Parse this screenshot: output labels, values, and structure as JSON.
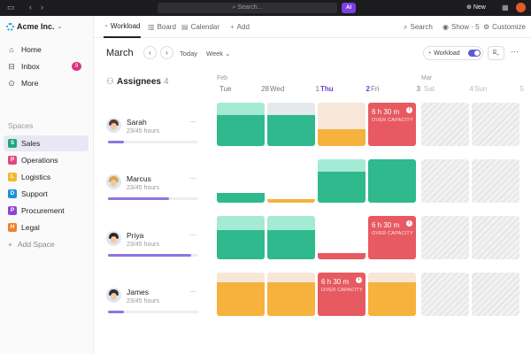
{
  "titlebar": {
    "search_placeholder": "Search...",
    "ai_label": "AI",
    "new_label": "New"
  },
  "sidebar": {
    "workspace": "Acme Inc.",
    "nav": [
      {
        "label": "Home",
        "icon": "home-icon"
      },
      {
        "label": "Inbox",
        "icon": "inbox-icon",
        "count": "9"
      },
      {
        "label": "More",
        "icon": "more-icon"
      }
    ],
    "spaces_label": "Spaces",
    "spaces": [
      {
        "letter": "S",
        "label": "Sales",
        "color": "#1aa683",
        "active": true
      },
      {
        "letter": "P",
        "label": "Operations",
        "color": "#e0497a"
      },
      {
        "letter": "L",
        "label": "Logistics",
        "color": "#f3b730"
      },
      {
        "letter": "D",
        "label": "Support",
        "color": "#1f8fd8"
      },
      {
        "letter": "P",
        "label": "Procurement",
        "color": "#8e44d8"
      },
      {
        "letter": "H",
        "label": "Legal",
        "color": "#f08227"
      }
    ],
    "add_space": "Add Space"
  },
  "tabs": [
    {
      "label": "Workload",
      "icon": "workload-icon",
      "active": true
    },
    {
      "label": "Board",
      "icon": "board-icon"
    },
    {
      "label": "Calendar",
      "icon": "calendar-icon"
    },
    {
      "label": "Add",
      "icon": "plus-icon"
    }
  ],
  "topbar_right": {
    "search": "Search",
    "show": "Show · 5",
    "customize": "Customize"
  },
  "toolbar": {
    "month": "March",
    "today": "Today",
    "week": "Week",
    "workload_toggle": "Workload"
  },
  "header": {
    "assignees": "Assignees",
    "assignee_count": "4"
  },
  "days": [
    {
      "month": "Feb",
      "name": "Tue",
      "num": "28"
    },
    {
      "month": "",
      "name": "Wed",
      "num": "1"
    },
    {
      "month": "",
      "name": "Thu",
      "num": "2",
      "today": true
    },
    {
      "month": "",
      "name": "Fri",
      "num": "3"
    },
    {
      "month": "Mar",
      "name": "Sat",
      "num": "4",
      "weekend": true
    },
    {
      "month": "",
      "name": "Sun",
      "num": "5",
      "weekend": true
    }
  ],
  "colors": {
    "green": "#2fb98c",
    "green_light": "#a5ead4",
    "green_pale": "#e6e9ec",
    "orange": "#f6b23c",
    "orange_light": "#f6e7d8",
    "red": "#e75a62",
    "accent": "#5b5bd6"
  },
  "people": [
    {
      "name": "Sarah",
      "hours": "23/45 hours",
      "progress": 0.18,
      "hair": "#5a3b2a",
      "cells": [
        {
          "type": "green",
          "fill": 0.72,
          "cap": 0.28
        },
        {
          "type": "green",
          "fill": 0.72,
          "cap": 0.28,
          "cap_color": "pale"
        },
        {
          "type": "orange",
          "fill": 0.38,
          "cap": 0.62,
          "cap_color": "orange_pale"
        },
        {
          "type": "over",
          "time": "6 h 30 m",
          "label": "OVER CAPACITY"
        },
        {
          "type": "weekend"
        },
        {
          "type": "weekend"
        }
      ]
    },
    {
      "name": "Marcus",
      "hours": "23/45 hours",
      "progress": 0.68,
      "hair": "#d9a44a",
      "cells": [
        {
          "type": "green",
          "fill": 0.22,
          "cap": 0
        },
        {
          "type": "orange",
          "fill": 0.08,
          "cap": 0
        },
        {
          "type": "green",
          "fill": 0.72,
          "cap": 0.28
        },
        {
          "type": "green",
          "fill": 1.0,
          "cap": 0.0
        },
        {
          "type": "weekend"
        },
        {
          "type": "weekend"
        }
      ]
    },
    {
      "name": "Priya",
      "hours": "23/45 hours",
      "progress": 0.92,
      "hair": "#3a2418",
      "cells": [
        {
          "type": "green",
          "fill": 0.68,
          "cap": 0.32
        },
        {
          "type": "green",
          "fill": 0.68,
          "cap": 0.32
        },
        {
          "type": "red",
          "fill": 0.14,
          "cap": 0
        },
        {
          "type": "over",
          "time": "6 h 30 m",
          "label": "OVER CAPACITY"
        },
        {
          "type": "weekend"
        },
        {
          "type": "weekend"
        }
      ]
    },
    {
      "name": "James",
      "hours": "23/45 hours",
      "progress": 0.18,
      "hair": "#2f2f2f",
      "cells": [
        {
          "type": "orange",
          "fill": 0.78,
          "cap": 0.22
        },
        {
          "type": "orange",
          "fill": 0.78,
          "cap": 0.22
        },
        {
          "type": "over",
          "time": "6 h 30 m",
          "label": "OVER CAPACITY"
        },
        {
          "type": "orange",
          "fill": 0.78,
          "cap": 0.22
        },
        {
          "type": "weekend"
        },
        {
          "type": "weekend"
        }
      ]
    }
  ]
}
